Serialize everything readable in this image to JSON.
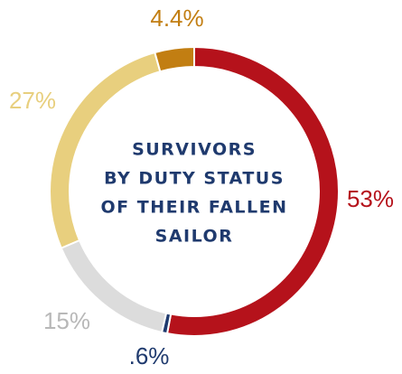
{
  "chart_data": {
    "type": "donut",
    "title": [
      "SURVIVORS",
      "BY DUTY STATUS",
      "OF THEIR FALLEN",
      "SAILOR"
    ],
    "values": [
      53,
      0.6,
      15,
      27,
      4.4
    ],
    "value_labels": [
      "53%",
      ".6%",
      "15%",
      "27%",
      "4.4%"
    ],
    "colors": [
      "#b5121b",
      "#1f3a6e",
      "#dcdcdc",
      "#e8cf7e",
      "#c27e12"
    ]
  }
}
